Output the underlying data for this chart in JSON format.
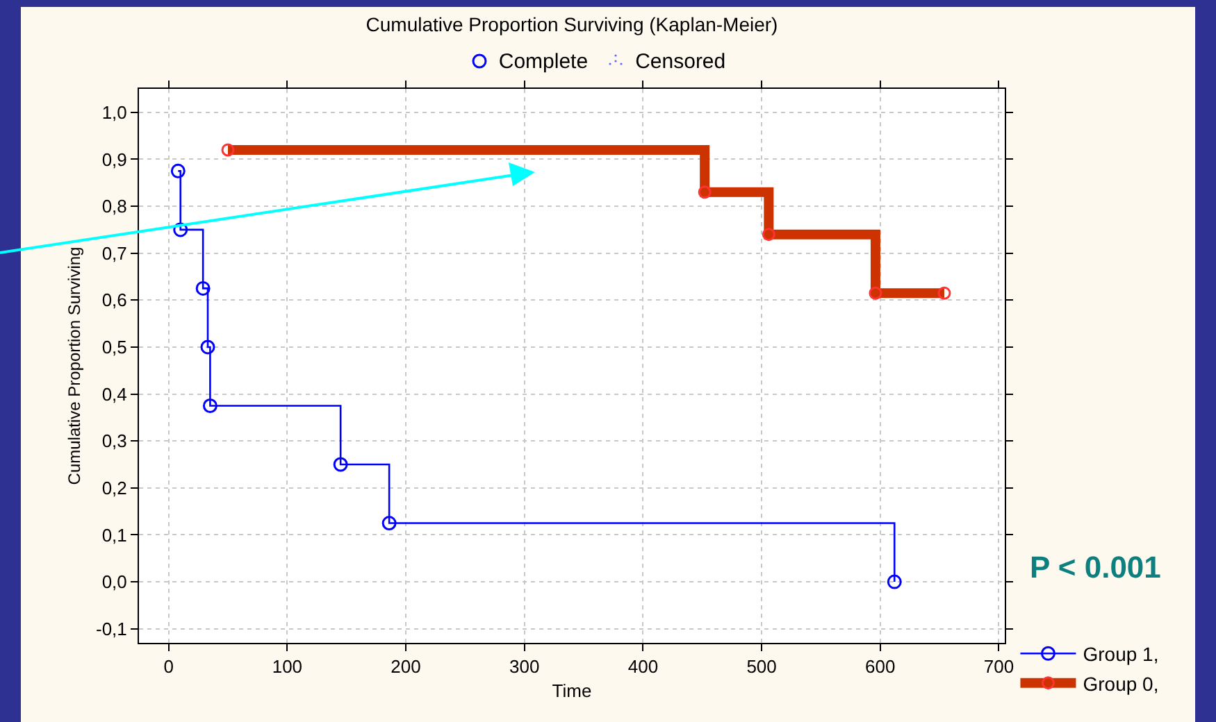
{
  "chart_data": {
    "type": "step",
    "title": "Cumulative Proportion Surviving (Kaplan-Meier)",
    "xlabel": "Time",
    "ylabel": "Cumulative Proportion Surviving",
    "annotations": [
      "Complete",
      "Censored",
      "P < 0.001"
    ],
    "series": [
      {
        "name": "Group 1,",
        "color": "#0000ff",
        "x": [
          8,
          10,
          29,
          33,
          35,
          145,
          186,
          612
        ],
        "values": [
          0.875,
          0.75,
          0.625,
          0.5,
          0.375,
          0.25,
          0.125,
          0.0
        ]
      },
      {
        "name": "Group 0,",
        "color": "#cc3300",
        "x": [
          50,
          452,
          506,
          596,
          654
        ],
        "values": [
          0.92,
          0.83,
          0.74,
          0.615,
          0.615
        ]
      }
    ],
    "xlim": [
      -25,
      705
    ],
    "xticks": [
      0,
      100,
      200,
      300,
      400,
      500,
      600,
      700
    ],
    "ylim": [
      -0.13,
      1.05
    ],
    "yticks": [
      {
        "value": -0.1,
        "label": "-0,1"
      },
      {
        "value": 0,
        "label": "0,0"
      },
      {
        "value": 0.1,
        "label": "0,1"
      },
      {
        "value": 0.2,
        "label": "0,2"
      },
      {
        "value": 0.3,
        "label": "0,3"
      },
      {
        "value": 0.4,
        "label": "0,4"
      },
      {
        "value": 0.5,
        "label": "0,5"
      },
      {
        "value": 0.6,
        "label": "0,6"
      },
      {
        "value": 0.7,
        "label": "0,7"
      },
      {
        "value": 0.8,
        "label": "0,8"
      },
      {
        "value": 0.9,
        "label": "0,9"
      },
      {
        "value": 1.0,
        "label": "1,0"
      }
    ],
    "grid": true,
    "legend": "bottom right",
    "marker": "circle"
  }
}
